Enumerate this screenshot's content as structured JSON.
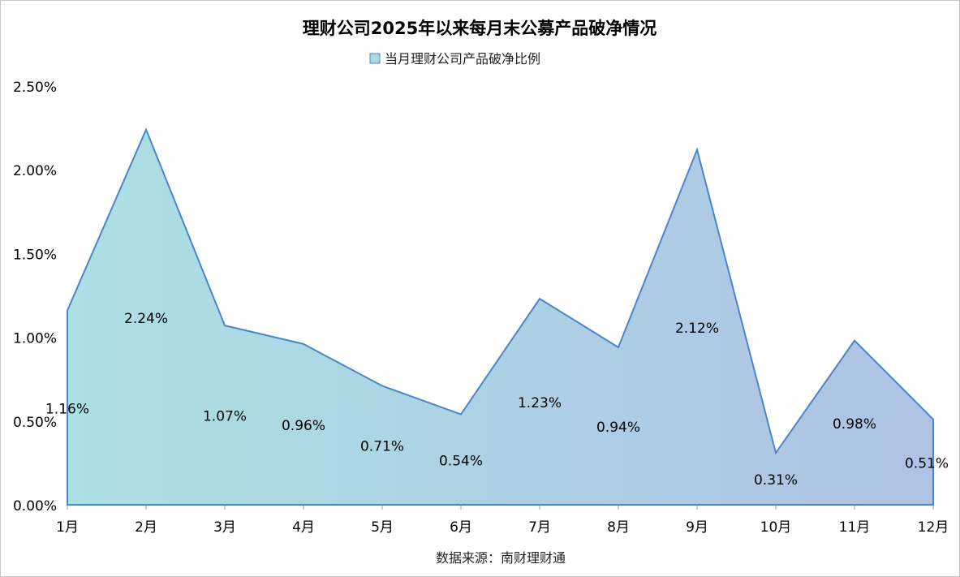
{
  "chart_data": {
    "type": "area",
    "title": "理财公司2025年以来每月末公募产品破净情况",
    "categories": [
      "1月",
      "2月",
      "3月",
      "4月",
      "5月",
      "6月",
      "7月",
      "8月",
      "9月",
      "10月",
      "11月",
      "12月"
    ],
    "series": [
      {
        "name": "当月理财公司产品破净比例",
        "values": [
          1.16,
          2.24,
          1.07,
          0.96,
          0.71,
          0.54,
          1.23,
          0.94,
          2.12,
          0.31,
          0.98,
          0.51
        ],
        "labels": [
          "1.16%",
          "2.24%",
          "1.07%",
          "0.96%",
          "0.71%",
          "0.54%",
          "1.23%",
          "0.94%",
          "2.12%",
          "0.31%",
          "0.98%",
          "0.51%"
        ]
      }
    ],
    "yticks": [
      "0.00%",
      "0.50%",
      "1.00%",
      "1.50%",
      "2.00%",
      "2.50%"
    ],
    "ylim": [
      0,
      2.5
    ],
    "ylabel": "",
    "xlabel": "",
    "grid": false,
    "legend_position": "top-center",
    "source": "数据来源：南财理财通",
    "colors": {
      "line": "#4a86c8",
      "fill_start": "#ace0e3",
      "fill_end": "#aec2e4"
    }
  }
}
